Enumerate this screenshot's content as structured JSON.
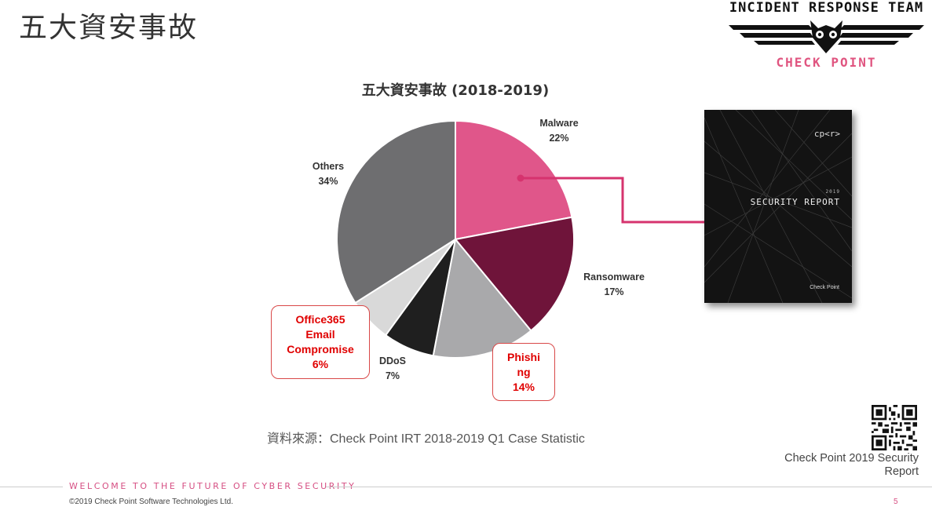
{
  "slide": {
    "title": "五大資安事故",
    "source": "資料來源：Check Point IRT 2018-2019 Q1 Case Statistic",
    "tagline": "WELCOME TO THE FUTURE OF CYBER SECURITY",
    "copyright": "©2019 Check Point Software Technologies Ltd.",
    "page_number": "5"
  },
  "brand": {
    "top": "INCIDENT RESPONSE TEAM",
    "bottom": "CHECK POINT",
    "icon": "owl-wings-icon"
  },
  "report_cover": {
    "logo": "cp<r>",
    "year": "2019",
    "title": "SECURITY REPORT",
    "brand": "Check Point"
  },
  "qr": {
    "icon": "qr-code-icon",
    "caption_line1": "Check Point 2019 Security",
    "caption_line2": "Report"
  },
  "chart_data": {
    "type": "pie",
    "title": "五大資安事故 (2018-2019)",
    "slices": [
      {
        "label": "Malware",
        "value": 22,
        "pct": "22%",
        "color": "#e0568a"
      },
      {
        "label": "Ransomware",
        "value": 17,
        "pct": "17%",
        "color": "#6f143a"
      },
      {
        "label": "Phishing",
        "value": 14,
        "pct": "14%",
        "color": "#a9a9ab",
        "callout": [
          "Phishi",
          "ng",
          "14%"
        ]
      },
      {
        "label": "DDoS",
        "value": 7,
        "pct": "7%",
        "color": "#1f1f1f"
      },
      {
        "label": "Office365 Email Compromise",
        "value": 6,
        "pct": "6%",
        "color": "#d9d9d9",
        "callout": [
          "Office365",
          "Email",
          "Compromise",
          "6%"
        ]
      },
      {
        "label": "Others",
        "value": 34,
        "pct": "34%",
        "color": "#6e6e70"
      }
    ],
    "accent": "#d6336e"
  }
}
